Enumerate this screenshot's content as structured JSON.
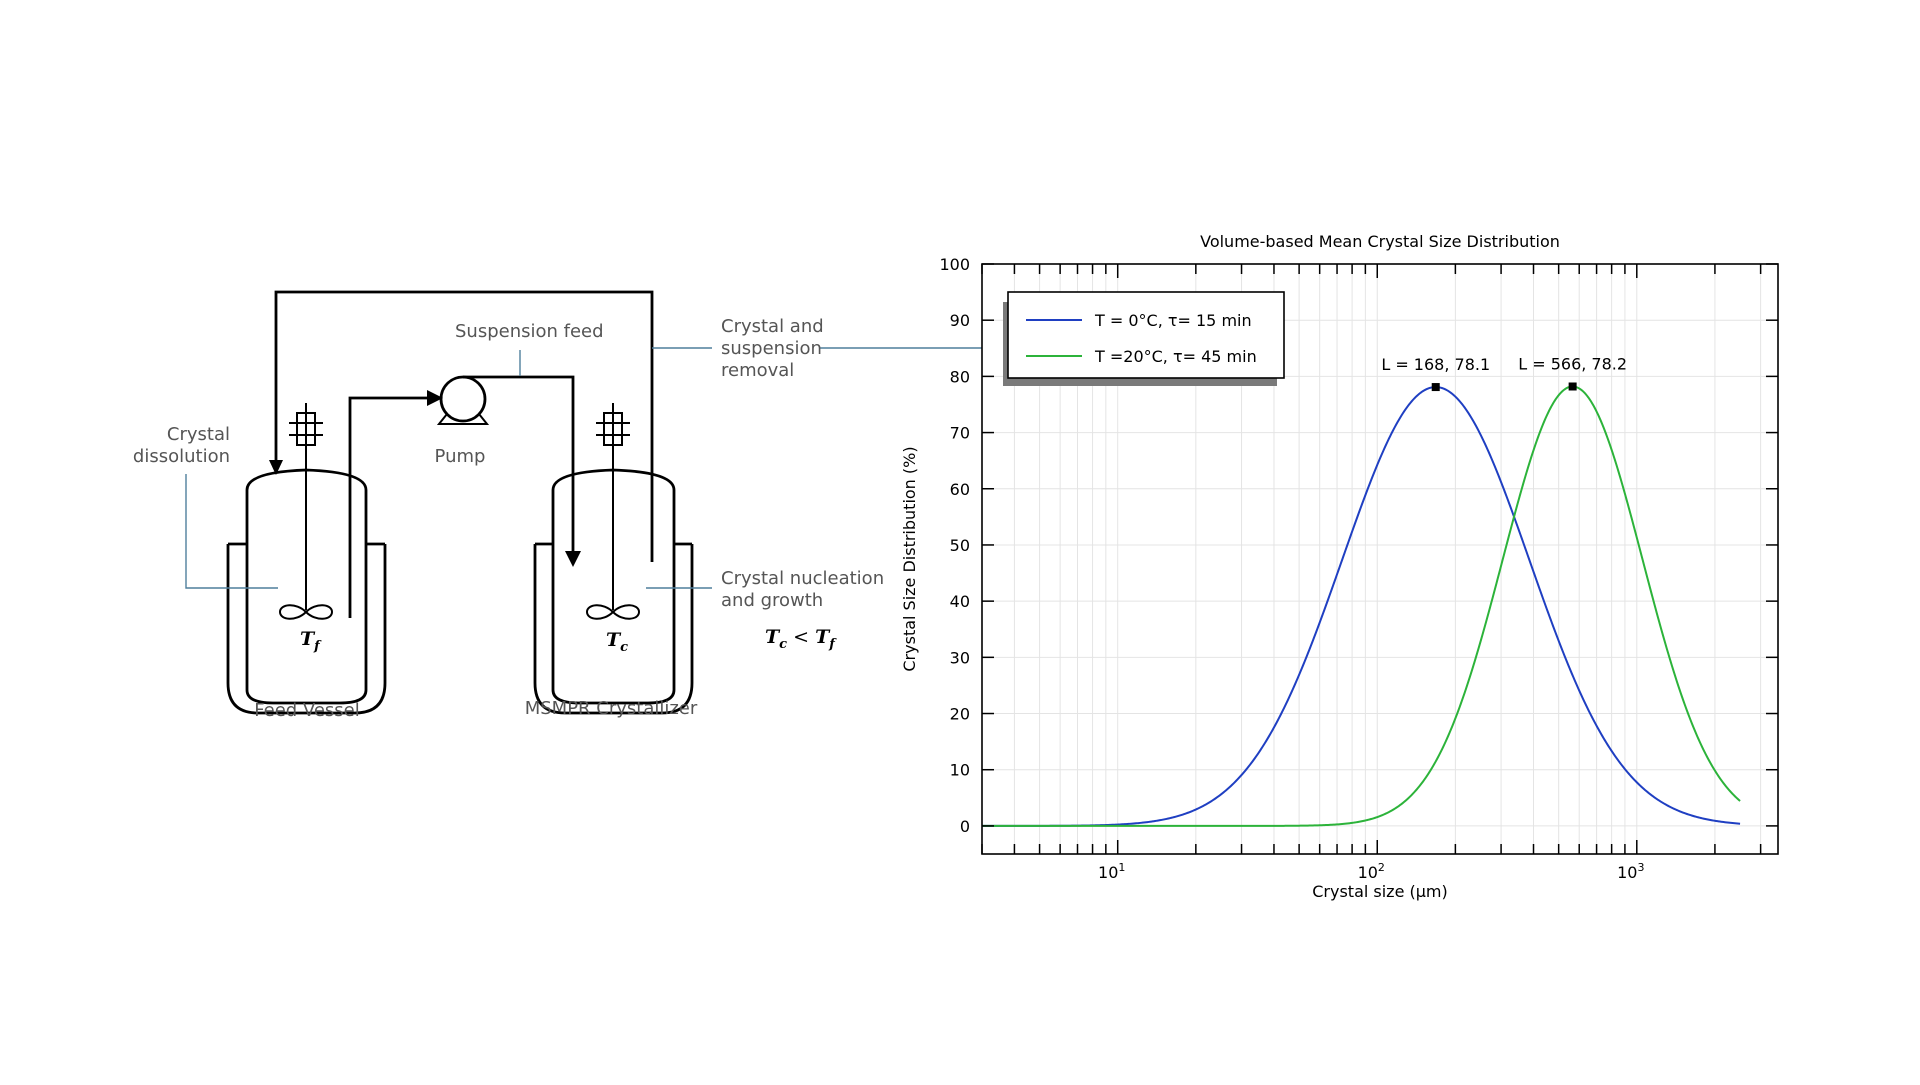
{
  "diagram": {
    "labels": {
      "suspension_feed": "Suspension feed",
      "crystal_removal_1": "Crystal and",
      "crystal_removal_2": "suspension",
      "crystal_removal_3": "removal",
      "dissolution_1": "Crystal",
      "dissolution_2": "dissolution",
      "pump": "Pump",
      "nucleation_1": "Crystal nucleation",
      "nucleation_2": "and growth",
      "feed_vessel": "Feed Vessel",
      "crystallizer": "MSMPR Crystallizer"
    },
    "math": {
      "tf_main": "T",
      "tf_sub": "f",
      "tc_main": "T",
      "tc_sub": "c",
      "relation": "T<sub>c</sub> < T<sub>f</sub>"
    },
    "icons": [
      "stirrer-icon",
      "pump-icon",
      "arrow-icon"
    ]
  },
  "chart_data": {
    "type": "line",
    "title": "Volume-based Mean Crystal Size Distribution",
    "xlabel": "Crystal size (µm)",
    "ylabel": "Crystal Size Distribution (%)",
    "xscale": "log",
    "xlim": [
      3,
      3500
    ],
    "ylim": [
      -5,
      100
    ],
    "yticks": [
      0,
      10,
      20,
      30,
      40,
      50,
      60,
      70,
      80,
      90,
      100
    ],
    "xticks": [
      {
        "value": 10,
        "base": "10",
        "exp": "1"
      },
      {
        "value": 100,
        "base": "10",
        "exp": "2"
      },
      {
        "value": 1000,
        "base": "10",
        "exp": "3"
      }
    ],
    "grid": true,
    "legend_position": "top-left",
    "series": [
      {
        "name": "T = 0°C, τ= 15 min",
        "color": "#1f3fc2",
        "peak_x": 168,
        "peak_y": 78.1,
        "spread": 0.83,
        "x_end": 2500
      },
      {
        "name": "T =20°C, τ= 45 min",
        "color": "#2cb33a",
        "peak_x": 566,
        "peak_y": 78.2,
        "spread": 0.62,
        "x_end": 2500
      }
    ],
    "annotations": [
      {
        "text": "L = 168, 78.1",
        "x": 168,
        "y": 78.1
      },
      {
        "text": "L = 566, 78.2",
        "x": 566,
        "y": 78.2
      }
    ]
  }
}
